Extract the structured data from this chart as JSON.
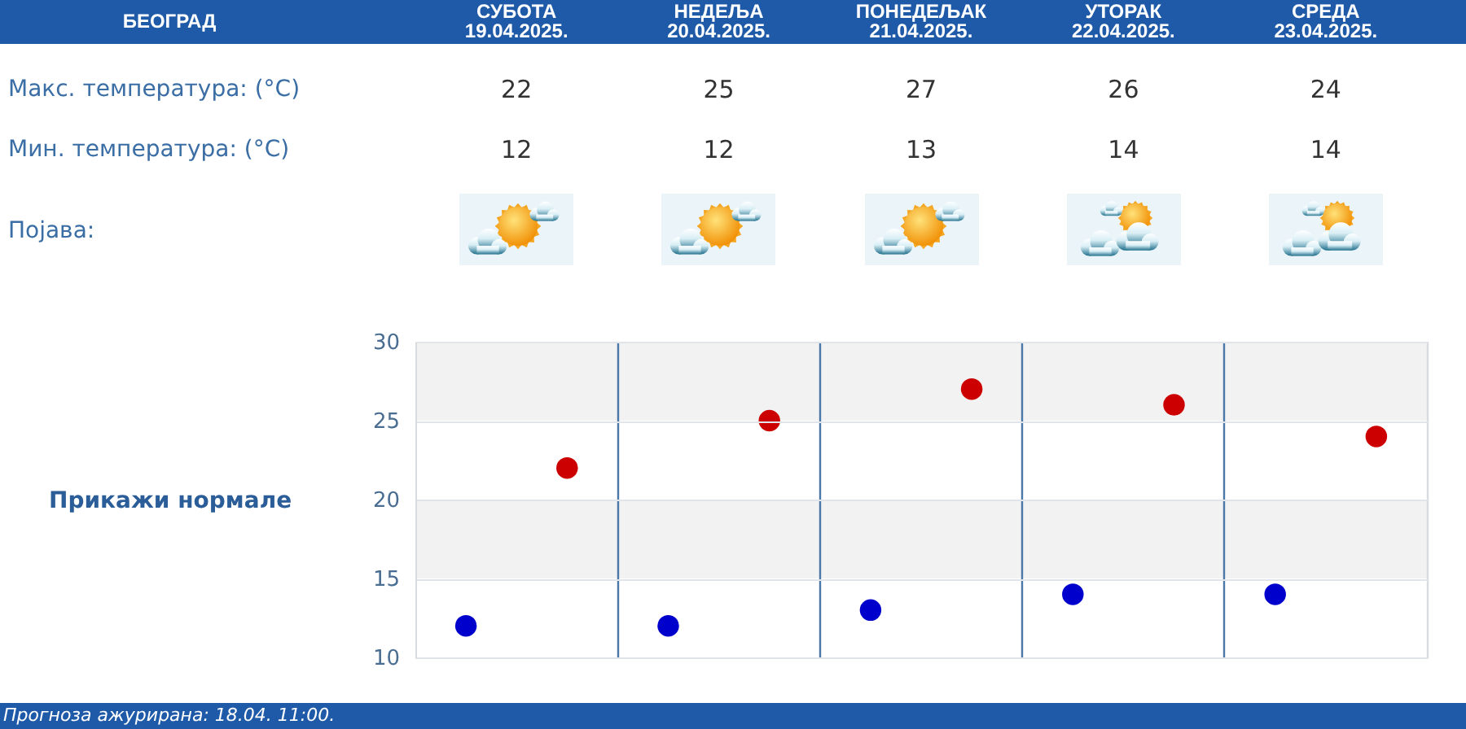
{
  "chart_data": {
    "type": "scatter",
    "title": "БЕОГРАД",
    "categories": [
      null,
      null,
      null,
      null,
      null
    ],
    "series": [
      {
        "color": "#cc0000",
        "values": [
          22,
          25,
          27,
          26,
          24
        ]
      },
      {
        "color": "#0000cc",
        "values": [
          12,
          12,
          13,
          14,
          14
        ]
      }
    ],
    "ylim": [
      10,
      30
    ],
    "yticks": [
      10,
      15,
      20,
      25,
      30
    ],
    "grid": true,
    "marker": "circle",
    "data_labels": true,
    "tick_labels": "y",
    "bands": [
      {
        "axis": "y",
        "from": 25,
        "to": 30,
        "color": "#f2f2f2"
      },
      {
        "axis": "y",
        "from": 15,
        "to": 20,
        "color": "#f2f2f2"
      }
    ],
    "annotations": [
      "СУБОТА\n19.04.2025.",
      "НЕДЕЉА\n20.04.2025.",
      "ПОНЕДЕЉАК\n21.04.2025.",
      "УТОРАК\n22.04.2025.",
      "СРЕДА\n23.04.2025.",
      "Макс. температура: (°C)",
      "Мин. температура: (°C)",
      "Појава:",
      "Прикажи нормале",
      "Прогноза ажурирана: 18.04. 11:00."
    ]
  }
}
